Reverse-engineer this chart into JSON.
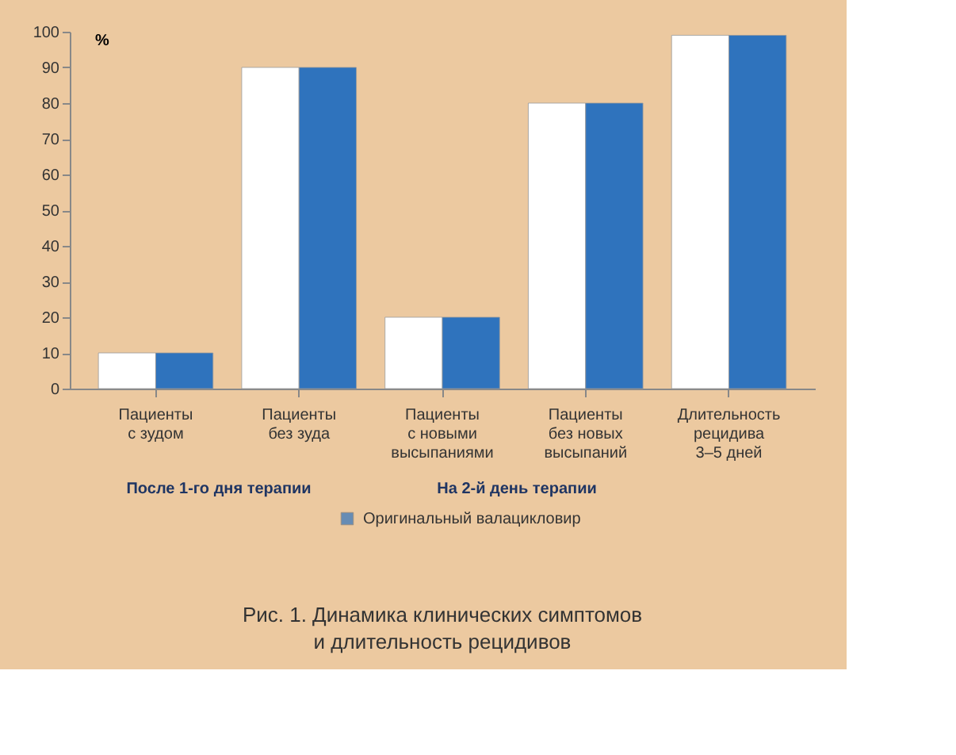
{
  "chart_data": {
    "type": "bar",
    "title": "Рис. 1. Динамика клинических симптомов\nи длительность рецидивов",
    "ylabel": "%",
    "categories": [
      "Пациенты\nс зудом",
      "Пациенты\nбез зуда",
      "Пациенты\nс новыми\nвысыпаниями",
      "Пациенты\nбез новых\nвысыпаний",
      "Длительность\nрецидива\n3–5 дней"
    ],
    "series": [
      {
        "color": "#ffffff",
        "values": [
          10,
          90,
          20,
          80,
          99
        ]
      },
      {
        "name": "Оригинальный валацикловир",
        "color": "#2f73bd",
        "values": [
          10,
          90,
          20,
          80,
          99
        ]
      }
    ],
    "annotations": [
      "После 1-го дня терапии",
      "На 2-й день терапии"
    ],
    "ylim": [
      0,
      100
    ],
    "yticks": [
      0,
      10,
      20,
      30,
      40,
      50,
      60,
      70,
      80,
      90,
      100
    ],
    "grid": false,
    "legend": "bottom"
  }
}
